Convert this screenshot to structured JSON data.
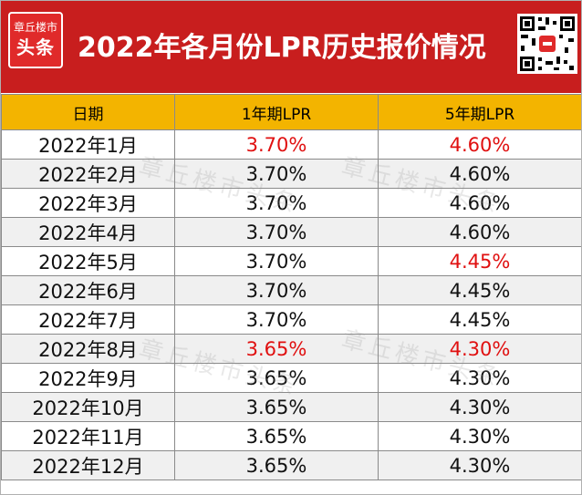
{
  "header": {
    "logo_top": "章丘楼市",
    "logo_bottom": "头条",
    "title": "2022年各月份LPR历史报价情况"
  },
  "table": {
    "columns": [
      "日期",
      "1年期LPR",
      "5年期LPR"
    ],
    "rows": [
      {
        "date": "2022年1月",
        "lpr1": "3.70%",
        "lpr5": "4.60%",
        "lpr1_changed": true,
        "lpr5_changed": true
      },
      {
        "date": "2022年2月",
        "lpr1": "3.70%",
        "lpr5": "4.60%",
        "lpr1_changed": false,
        "lpr5_changed": false
      },
      {
        "date": "2022年3月",
        "lpr1": "3.70%",
        "lpr5": "4.60%",
        "lpr1_changed": false,
        "lpr5_changed": false
      },
      {
        "date": "2022年4月",
        "lpr1": "3.70%",
        "lpr5": "4.60%",
        "lpr1_changed": false,
        "lpr5_changed": false
      },
      {
        "date": "2022年5月",
        "lpr1": "3.70%",
        "lpr5": "4.45%",
        "lpr1_changed": false,
        "lpr5_changed": true
      },
      {
        "date": "2022年6月",
        "lpr1": "3.70%",
        "lpr5": "4.45%",
        "lpr1_changed": false,
        "lpr5_changed": false
      },
      {
        "date": "2022年7月",
        "lpr1": "3.70%",
        "lpr5": "4.45%",
        "lpr1_changed": false,
        "lpr5_changed": false
      },
      {
        "date": "2022年8月",
        "lpr1": "3.65%",
        "lpr5": "4.30%",
        "lpr1_changed": true,
        "lpr5_changed": true
      },
      {
        "date": "2022年9月",
        "lpr1": "3.65%",
        "lpr5": "4.30%",
        "lpr1_changed": false,
        "lpr5_changed": false
      },
      {
        "date": "2022年10月",
        "lpr1": "3.65%",
        "lpr5": "4.30%",
        "lpr1_changed": false,
        "lpr5_changed": false
      },
      {
        "date": "2022年11月",
        "lpr1": "3.65%",
        "lpr5": "4.30%",
        "lpr1_changed": false,
        "lpr5_changed": false
      },
      {
        "date": "2022年12月",
        "lpr1": "3.65%",
        "lpr5": "4.30%",
        "lpr1_changed": false,
        "lpr5_changed": false
      }
    ]
  },
  "watermark": {
    "text": "章丘楼市头条"
  },
  "colors": {
    "banner": "#c81e1e",
    "header_row": "#f3b400",
    "changed_value": "#e01010"
  }
}
